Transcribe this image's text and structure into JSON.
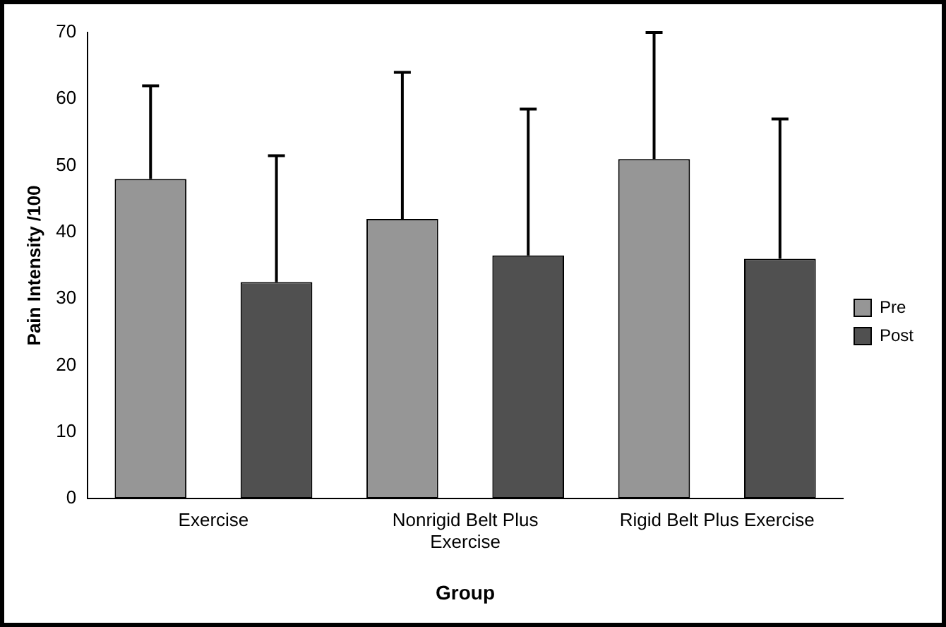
{
  "chart_data": {
    "type": "bar",
    "xlabel": "Group",
    "ylabel": "Pain Intensity /100",
    "categories": [
      "Exercise",
      "Nonrigid Belt Plus Exercise",
      "Rigid Belt Plus Exercise"
    ],
    "series": [
      {
        "name": "Pre",
        "color": "#969696",
        "values": [
          48,
          42,
          51
        ],
        "errors": [
          [
            48,
            62
          ],
          [
            42,
            64
          ],
          [
            51,
            70
          ]
        ]
      },
      {
        "name": "Post",
        "color": "#505050",
        "values": [
          32.5,
          36.5,
          36
        ],
        "errors": [
          [
            32.5,
            51.5
          ],
          [
            36.5,
            58.5
          ],
          [
            36,
            57
          ]
        ]
      }
    ],
    "ylim": [
      0,
      70
    ],
    "yticks": [
      0,
      10,
      20,
      30,
      40,
      50,
      60,
      70
    ],
    "grid": false,
    "legend": "right"
  }
}
